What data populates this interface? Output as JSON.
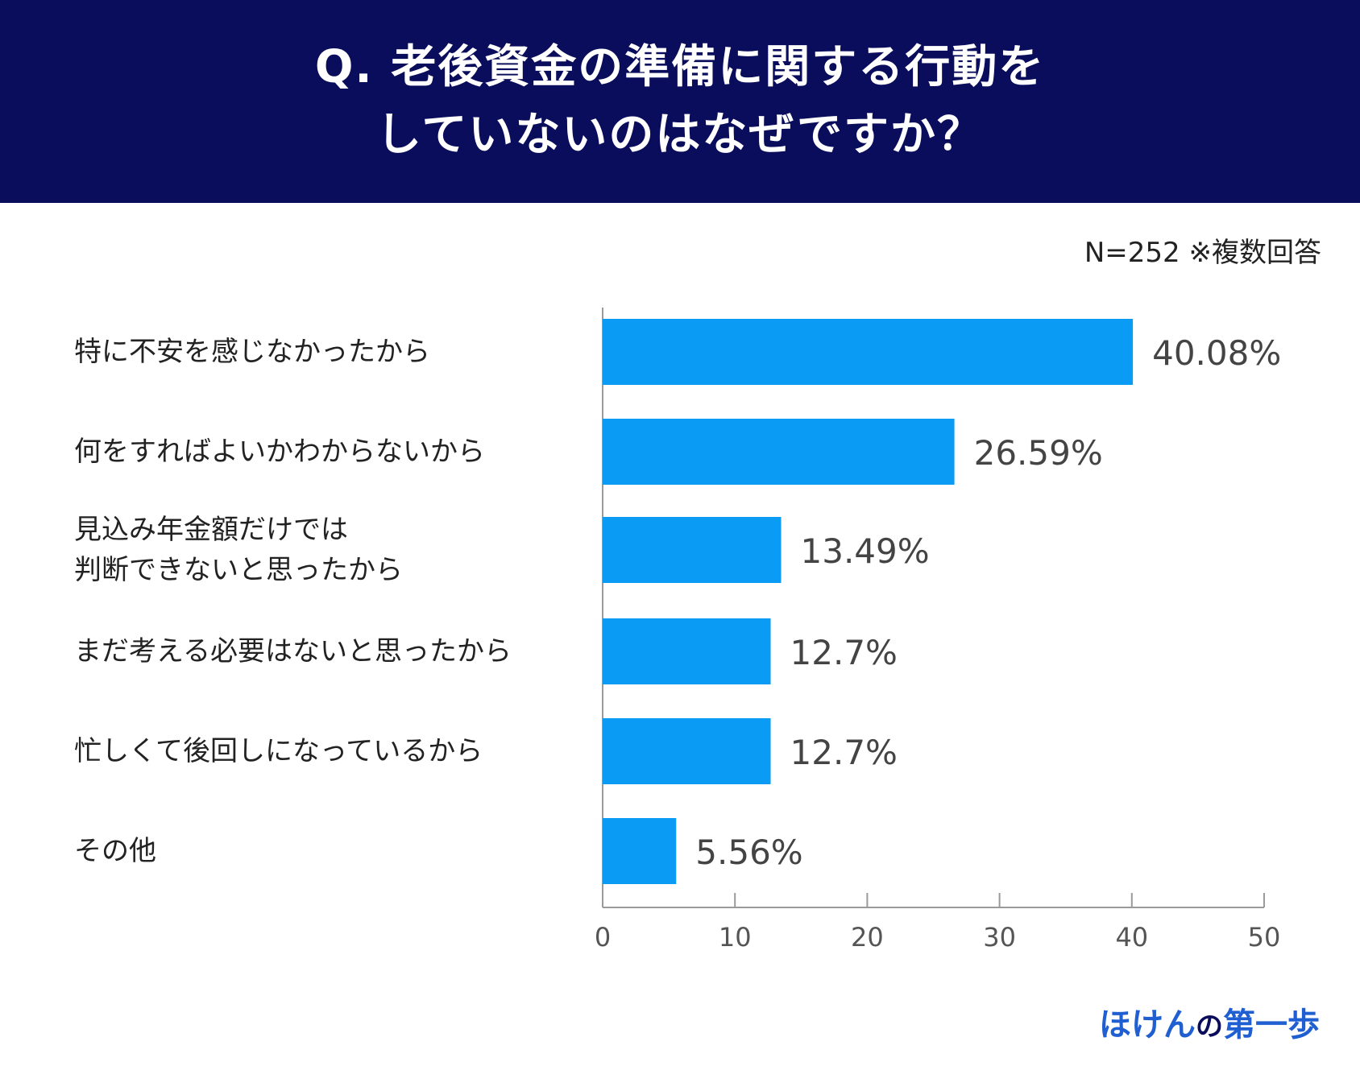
{
  "header": {
    "title_line1": "Q. 老後資金の準備に関する行動を",
    "title_line2": "していないのはなぜですか？"
  },
  "note": "N=252 ※複数回答",
  "brand": {
    "part1": "ほけん",
    "part2": "の",
    "part3": "第一歩"
  },
  "colors": {
    "header_bg": "#0a0d5b",
    "bar": "#0a9cf5"
  },
  "chart_data": {
    "type": "bar",
    "orientation": "horizontal",
    "categories": [
      [
        "特に不安を感じなかったから"
      ],
      [
        "何をすればよいかわからないから"
      ],
      [
        "見込み年金額だけでは",
        "判断できないと思ったから"
      ],
      [
        "まだ考える必要はないと思ったから"
      ],
      [
        "忙しくて後回しになっているから"
      ],
      [
        "その他"
      ]
    ],
    "values": [
      40.08,
      26.59,
      13.49,
      12.7,
      12.7,
      5.56
    ],
    "value_labels": [
      "40.08%",
      "26.59%",
      "13.49%",
      "12.7%",
      "12.7%",
      "5.56%"
    ],
    "xlim": [
      0,
      50
    ],
    "xticks": [
      "0",
      "10",
      "20",
      "30",
      "40",
      "50"
    ],
    "grid": false
  }
}
